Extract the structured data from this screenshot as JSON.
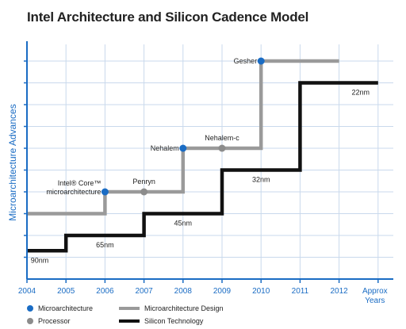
{
  "title": "Intel Architecture and Silicon Cadence Model",
  "y_axis_label": "Microarchitecture Advances",
  "x_ticks": [
    "2004",
    "2005",
    "2006",
    "2007",
    "2008",
    "2009",
    "2010",
    "2011",
    "2012"
  ],
  "x_last_tick": [
    "Approx",
    "Years"
  ],
  "colors": {
    "grid": "#c9d9ec",
    "axis": "#1a6cc4",
    "microarchitecture": "#1a6cc4",
    "processor": "#8c8c8c",
    "design_line": "#9a9a9a",
    "silicon_line": "#111111"
  },
  "design_steps": [
    {
      "from": 2004,
      "to": 2006,
      "level": 3
    },
    {
      "from": 2006,
      "to": 2008,
      "level": 4
    },
    {
      "from": 2008,
      "to": 2010,
      "level": 6
    },
    {
      "from": 2010,
      "to": 2012,
      "level": 10
    }
  ],
  "silicon_steps": [
    {
      "from": 2004,
      "to": 2005,
      "level": 1.3,
      "label": "90nm"
    },
    {
      "from": 2005,
      "to": 2007,
      "level": 2,
      "label": "65nm"
    },
    {
      "from": 2007,
      "to": 2009,
      "level": 3,
      "label": "45nm"
    },
    {
      "from": 2009,
      "to": 2011,
      "level": 5,
      "label": "32nm"
    },
    {
      "from": 2011,
      "to": 2013,
      "level": 9,
      "label": "22nm"
    }
  ],
  "points": [
    {
      "year": 2006,
      "level": 4,
      "kind": "microarchitecture",
      "label": [
        "Intel® Core™",
        "microarchitecture"
      ]
    },
    {
      "year": 2007,
      "level": 4,
      "kind": "processor",
      "label": [
        "Penryn"
      ]
    },
    {
      "year": 2008,
      "level": 6,
      "kind": "microarchitecture",
      "label": [
        "Nehalem"
      ]
    },
    {
      "year": 2009,
      "level": 6,
      "kind": "processor",
      "label": [
        "Nehalem-c"
      ]
    },
    {
      "year": 2010,
      "level": 10,
      "kind": "microarchitecture",
      "label": [
        "Gesher"
      ]
    }
  ],
  "legend": {
    "microarchitecture": "Microarchitecture",
    "processor": "Processor",
    "design": "Microarchitecture Design",
    "silicon": "Silicon Technology"
  }
}
